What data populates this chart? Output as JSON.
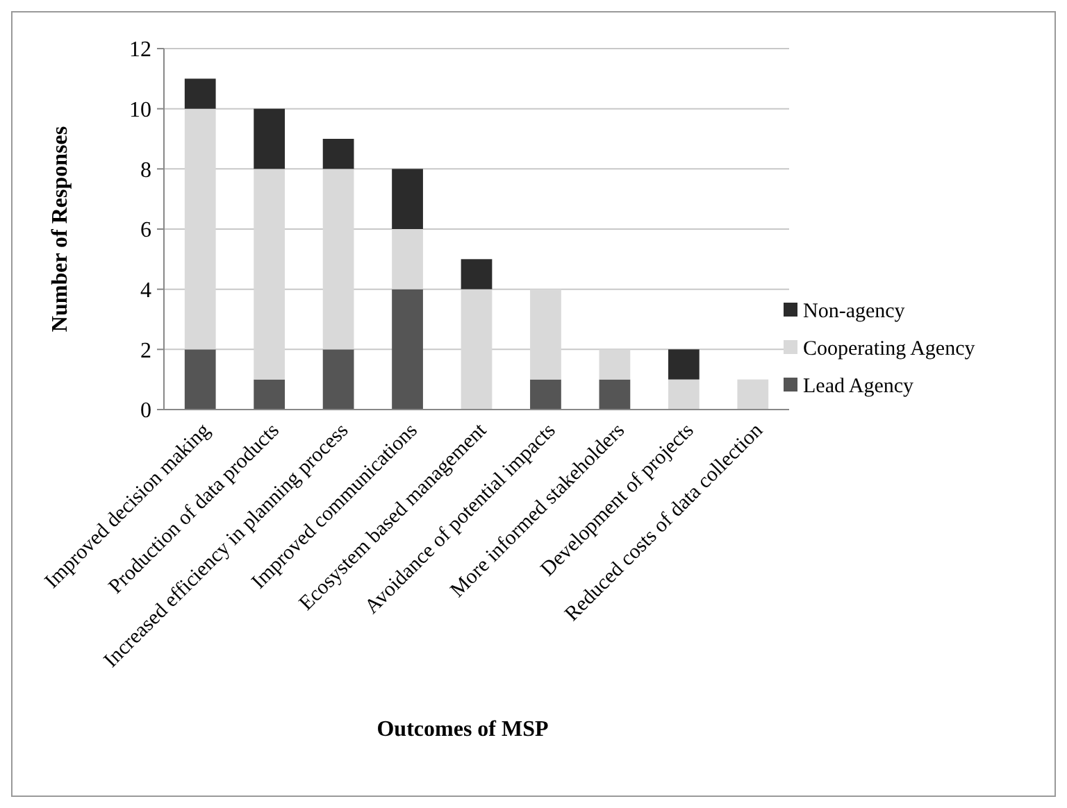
{
  "chart_data": {
    "type": "bar",
    "stacked": true,
    "xlabel": "Outcomes of MSP",
    "ylabel": "Number of Responses",
    "categories": [
      "Improved decision making",
      "Production of data products",
      "Increased efficiency in planning process",
      "Improved communications",
      "Ecosystem based management",
      "Avoidance of potential impacts",
      "More informed stakeholders",
      "Development of projects",
      "Reduced costs of data collection"
    ],
    "series": [
      {
        "name": "Lead Agency",
        "color": "#555555",
        "values": [
          2,
          1,
          2,
          4,
          0,
          1,
          1,
          0,
          0
        ]
      },
      {
        "name": "Cooperating Agency",
        "color": "#d9d9d9",
        "values": [
          8,
          7,
          6,
          2,
          4,
          3,
          1,
          1,
          1
        ]
      },
      {
        "name": "Non-agency",
        "color": "#2b2b2b",
        "values": [
          1,
          2,
          1,
          2,
          1,
          0,
          0,
          1,
          0
        ]
      }
    ],
    "ylim": [
      0,
      12
    ],
    "yticks": [
      0,
      2,
      4,
      6,
      8,
      10,
      12
    ],
    "grid": "y",
    "legend": "right"
  }
}
